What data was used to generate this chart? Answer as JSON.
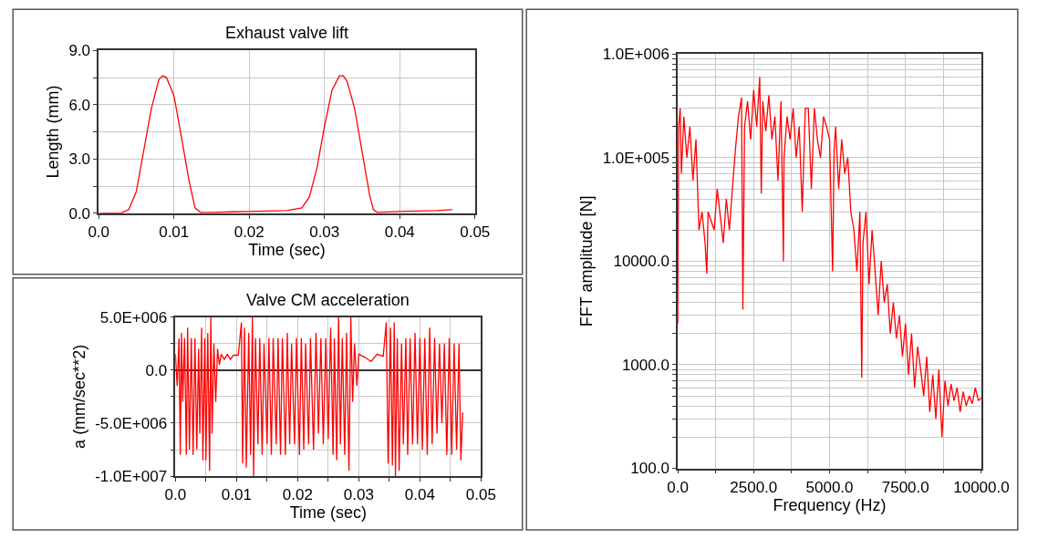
{
  "chart_data": [
    {
      "type": "line",
      "title": "Exhaust valve lift",
      "xlabel": "Time (sec)",
      "ylabel": "Length (mm)",
      "grid": true,
      "marker": "none",
      "line_style": "solid",
      "xlim": [
        0,
        0.05
      ],
      "ylim": [
        0,
        9
      ],
      "xticks": [
        {
          "value": 0,
          "label": "0.0"
        },
        0.01,
        0.02,
        0.03,
        0.04,
        0.05
      ],
      "yticks": [
        {
          "value": 0,
          "label": "0.0"
        },
        {
          "value": 1.5,
          "label": null
        },
        {
          "value": 3,
          "label": "3.0"
        },
        {
          "value": 4.5,
          "label": null
        },
        {
          "value": 6,
          "label": "6.0"
        },
        {
          "value": 7.5,
          "label": null
        },
        {
          "value": 9,
          "label": "9.0"
        }
      ],
      "series": [
        {
          "color": "#ff0000",
          "x": [
            0,
            0.003,
            0.004,
            0.005,
            0.006,
            0.007,
            0.008,
            0.0085,
            0.009,
            0.01,
            0.011,
            0.012,
            0.0128,
            0.0135,
            0.015,
            0.02,
            0.025,
            0.027,
            0.028,
            0.029,
            0.03,
            0.031,
            0.032,
            0.0325,
            0.033,
            0.034,
            0.035,
            0.036,
            0.0365,
            0.037,
            0.04,
            0.045,
            0.047
          ],
          "values": [
            0,
            0.02,
            0.2,
            1.2,
            3.5,
            5.8,
            7.4,
            7.6,
            7.5,
            6.5,
            4.2,
            1.8,
            0.3,
            0.05,
            0.05,
            0.1,
            0.15,
            0.3,
            0.9,
            2.5,
            4.8,
            6.8,
            7.6,
            7.6,
            7.3,
            5.8,
            3.4,
            1.0,
            0.2,
            0.05,
            0.1,
            0.15,
            0.2
          ]
        }
      ]
    },
    {
      "type": "line",
      "title": "Valve CM acceleration",
      "xlabel": "Time (sec)",
      "ylabel": "a (mm/sec**2)",
      "grid": true,
      "marker": "none",
      "line_style": "solid",
      "xlim": [
        0,
        0.05
      ],
      "ylim": [
        -10000000.0,
        5000000.0
      ],
      "xticks": [
        {
          "value": 0,
          "label": "0.0"
        },
        {
          "value": 0.005,
          "label": null
        },
        0.01,
        {
          "value": 0.015,
          "label": null
        },
        0.02,
        {
          "value": 0.025,
          "label": null
        },
        0.03,
        {
          "value": 0.035,
          "label": null
        },
        0.04,
        {
          "value": 0.045,
          "label": null
        },
        0.05
      ],
      "yticks": [
        {
          "value": -10000000.0,
          "label": "-1.0E+007"
        },
        {
          "value": -7500000.0,
          "label": null
        },
        {
          "value": -5000000.0,
          "label": "-5.0E+006"
        },
        {
          "value": -2500000.0,
          "label": null
        },
        {
          "value": 0,
          "label": "0.0"
        },
        {
          "value": 2500000.0,
          "label": null
        },
        {
          "value": 5000000.0,
          "label": "5.0E+006"
        }
      ],
      "series": [
        {
          "color": "#ff0000",
          "x": [
            0,
            0.0003,
            0.0006,
            0.0008,
            0.001,
            0.0012,
            0.0015,
            0.0018,
            0.002,
            0.0023,
            0.0026,
            0.0029,
            0.0032,
            0.0035,
            0.0038,
            0.004,
            0.0043,
            0.0045,
            0.0048,
            0.005,
            0.0053,
            0.0056,
            0.0058,
            0.006,
            0.0063,
            0.0066,
            0.0069,
            0.0072,
            0.0075,
            0.008,
            0.0085,
            0.009,
            0.0095,
            0.0103,
            0.0108,
            0.011,
            0.0113,
            0.0116,
            0.012,
            0.0123,
            0.0126,
            0.0128,
            0.0131,
            0.0135,
            0.0138,
            0.0142,
            0.0145,
            0.015,
            0.0153,
            0.0157,
            0.016,
            0.0165,
            0.0168,
            0.0172,
            0.0175,
            0.018,
            0.0183,
            0.0187,
            0.019,
            0.0195,
            0.0198,
            0.0203,
            0.0206,
            0.021,
            0.0213,
            0.0218,
            0.0221,
            0.0226,
            0.023,
            0.0234,
            0.0238,
            0.0242,
            0.0246,
            0.025,
            0.0254,
            0.0258,
            0.026,
            0.0264,
            0.0267,
            0.027,
            0.0273,
            0.0277,
            0.028,
            0.0284,
            0.0287,
            0.029,
            0.0293,
            0.0297,
            0.03,
            0.031,
            0.032,
            0.033,
            0.034,
            0.0345,
            0.0348,
            0.0352,
            0.0355,
            0.0358,
            0.036,
            0.0363,
            0.0366,
            0.037,
            0.0373,
            0.0377,
            0.038,
            0.0384,
            0.0388,
            0.0392,
            0.0396,
            0.04,
            0.0404,
            0.0408,
            0.0412,
            0.0416,
            0.042,
            0.0424,
            0.0428,
            0.0432,
            0.0436,
            0.044,
            0.0444,
            0.0448,
            0.0452,
            0.0456,
            0.046,
            0.0464,
            0.0467,
            0.047
          ],
          "values": [
            1500000.0,
            -1500000.0,
            3000000.0,
            -8000000.0,
            3500000.0,
            -3000000.0,
            3000000.0,
            -8000000.0,
            4000000.0,
            -7500000.0,
            3000000.0,
            -8000000.0,
            3000000.0,
            -7500000.0,
            2000000.0,
            -6000000.0,
            4000000.0,
            -8500000.0,
            3000000.0,
            -8500000.0,
            3500000.0,
            -9500000.0,
            5000000.0,
            -6000000.0,
            2500000.0,
            -3000000.0,
            2000000.0,
            500000.0,
            1500000.0,
            1000000.0,
            1500000.0,
            1000000.0,
            1400000.0,
            1400000.0,
            4500000.0,
            -8800000.0,
            4000000.0,
            -9200000.0,
            3500000.0,
            -8000000.0,
            5000000.0,
            -10000000.0,
            3000000.0,
            -7000000.0,
            3000000.0,
            -8000000.0,
            2500000.0,
            -7000000.0,
            3000000.0,
            -8000000.0,
            3000000.0,
            -7000000.0,
            3000000.0,
            -8000000.0,
            3000000.0,
            -8000000.0,
            3500000.0,
            -7000000.0,
            2500000.0,
            -7000000.0,
            3000000.0,
            -8000000.0,
            3000000.0,
            -7500000.0,
            2500000.0,
            -7000000.0,
            3000000.0,
            -7500000.0,
            3500000.0,
            -6000000.0,
            3000000.0,
            -7000000.0,
            3000000.0,
            -6500000.0,
            4000000.0,
            -8000000.0,
            3000000.0,
            -8500000.0,
            5000000.0,
            -7000000.0,
            3000000.0,
            -8000000.0,
            3500000.0,
            -9500000.0,
            5000000.0,
            -3000000.0,
            2500000.0,
            -1500000.0,
            1500000.0,
            1200000.0,
            800000.0,
            1500000.0,
            1300000.0,
            4500000.0,
            -8800000.0,
            4000000.0,
            -9000000.0,
            4500000.0,
            -10000000.0,
            3000000.0,
            -9500000.0,
            2500000.0,
            -7000000.0,
            3000000.0,
            -8000000.0,
            3000000.0,
            -7000000.0,
            3500000.0,
            -7000000.0,
            3000000.0,
            -7500000.0,
            3000000.0,
            -8000000.0,
            4000000.0,
            -7000000.0,
            3000000.0,
            -6000000.0,
            2500000.0,
            -5000000.0,
            2500000.0,
            -8000000.0,
            3000000.0,
            -8000000.0,
            2500000.0,
            -7500000.0,
            2500000.0,
            -8500000.0,
            -4000000.0
          ]
        }
      ]
    },
    {
      "type": "line",
      "xlabel": "Frequency (Hz)",
      "ylabel": "FFT amplitude [N]",
      "grid": true,
      "marker": "none",
      "line_style": "solid",
      "log": "y",
      "xlim": [
        0,
        10000
      ],
      "ylim": [
        100,
        1000000
      ],
      "xticks": [
        {
          "value": 0,
          "label": "0.0"
        },
        {
          "value": 1250,
          "label": null
        },
        {
          "value": 2500,
          "label": "2500.0"
        },
        {
          "value": 3750,
          "label": null
        },
        {
          "value": 5000,
          "label": "5000.0"
        },
        {
          "value": 6250,
          "label": null
        },
        {
          "value": 7500,
          "label": "7500.0"
        },
        {
          "value": 8750,
          "label": null
        },
        {
          "value": 10000,
          "label": "10000.0"
        }
      ],
      "yticks": [
        {
          "value": 100,
          "label": "100.0"
        },
        {
          "value": 200,
          "label": null
        },
        {
          "value": 300,
          "label": null
        },
        {
          "value": 400,
          "label": null
        },
        {
          "value": 500,
          "label": null
        },
        {
          "value": 600,
          "label": null
        },
        {
          "value": 700,
          "label": null
        },
        {
          "value": 800,
          "label": null
        },
        {
          "value": 900,
          "label": null
        },
        {
          "value": 1000,
          "label": "1000.0"
        },
        {
          "value": 2000,
          "label": null
        },
        {
          "value": 3000,
          "label": null
        },
        {
          "value": 4000,
          "label": null
        },
        {
          "value": 5000,
          "label": null
        },
        {
          "value": 6000,
          "label": null
        },
        {
          "value": 7000,
          "label": null
        },
        {
          "value": 8000,
          "label": null
        },
        {
          "value": 9000,
          "label": null
        },
        {
          "value": 10000,
          "label": "10000.0"
        },
        {
          "value": 20000,
          "label": null
        },
        {
          "value": 30000,
          "label": null
        },
        {
          "value": 40000,
          "label": null
        },
        {
          "value": 50000,
          "label": null
        },
        {
          "value": 60000,
          "label": null
        },
        {
          "value": 70000,
          "label": null
        },
        {
          "value": 80000,
          "label": null
        },
        {
          "value": 90000,
          "label": null
        },
        {
          "value": 100000,
          "label": "1.0E+005"
        },
        {
          "value": 200000,
          "label": null
        },
        {
          "value": 300000,
          "label": null
        },
        {
          "value": 400000,
          "label": null
        },
        {
          "value": 500000,
          "label": null
        },
        {
          "value": 600000,
          "label": null
        },
        {
          "value": 700000,
          "label": null
        },
        {
          "value": 800000,
          "label": null
        },
        {
          "value": 900000,
          "label": null
        },
        {
          "value": 1000000,
          "label": "1.0E+006"
        }
      ],
      "series": [
        {
          "color": "#ff0000",
          "x": [
            0,
            30,
            80,
            120,
            200,
            300,
            400,
            500,
            600,
            700,
            800,
            900,
            957,
            1000,
            1200,
            1300,
            1500,
            1600,
            1700,
            1800,
            1900,
            2000,
            2100,
            2145,
            2200,
            2300,
            2400,
            2500,
            2600,
            2700,
            2750,
            2800,
            2900,
            3000,
            3100,
            3200,
            3300,
            3400,
            3480,
            3500,
            3600,
            3700,
            3800,
            3900,
            4000,
            4100,
            4200,
            4300,
            4400,
            4500,
            4600,
            4700,
            4800,
            4900,
            5000,
            5100,
            5150,
            5200,
            5300,
            5400,
            5500,
            5600,
            5700,
            5800,
            5900,
            6000,
            6060,
            6100,
            6200,
            6300,
            6400,
            6500,
            6600,
            6700,
            6800,
            6900,
            7000,
            7100,
            7200,
            7300,
            7400,
            7500,
            7600,
            7700,
            7800,
            7900,
            8000,
            8100,
            8200,
            8300,
            8400,
            8500,
            8600,
            8700,
            8800,
            8900,
            9000,
            9100,
            9200,
            9300,
            9400,
            9500,
            9600,
            9700,
            9800,
            9900,
            10000
          ],
          "values": [
            2500,
            200000,
            300000,
            70000,
            250000,
            100000,
            200000,
            60000,
            150000,
            20000,
            30000,
            15000,
            7600,
            30000,
            20000,
            50000,
            15000,
            40000,
            20000,
            50000,
            120000,
            250000,
            380000,
            3400,
            200000,
            350000,
            150000,
            450000,
            200000,
            600000,
            45000,
            350000,
            180000,
            400000,
            150000,
            250000,
            60000,
            350000,
            10000,
            100000,
            250000,
            150000,
            300000,
            100000,
            200000,
            30000,
            300000,
            300000,
            50000,
            300000,
            150000,
            100000,
            250000,
            200000,
            150000,
            8000,
            120000,
            200000,
            50000,
            150000,
            70000,
            100000,
            30000,
            20000,
            8000,
            30000,
            750,
            15000,
            30000,
            6000,
            20000,
            8000,
            3000,
            10000,
            4000,
            6000,
            2000,
            4000,
            1800,
            3000,
            1200,
            2500,
            800,
            2000,
            600,
            1500,
            900,
            500,
            1200,
            350,
            800,
            300,
            900,
            200,
            700,
            400,
            650,
            450,
            600,
            350,
            550,
            400,
            500,
            420,
            600,
            450,
            480
          ]
        }
      ]
    }
  ]
}
